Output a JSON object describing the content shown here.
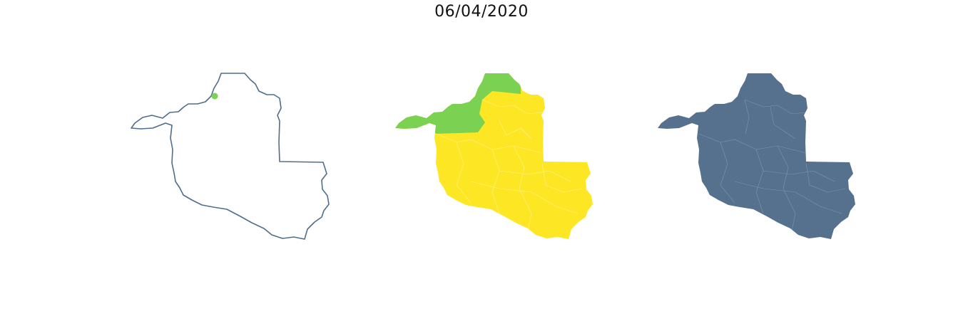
{
  "title": "06/04/2020",
  "colors": {
    "outline": "#4e6e8e",
    "green": "#7bd151",
    "yellow": "#fde725",
    "blue": "#56718d",
    "inner_line_light": "#ffffff"
  },
  "maps": [
    {
      "name": "state-outline-with-point"
    },
    {
      "name": "state-two-category-fill"
    },
    {
      "name": "state-single-category-fill"
    }
  ]
}
